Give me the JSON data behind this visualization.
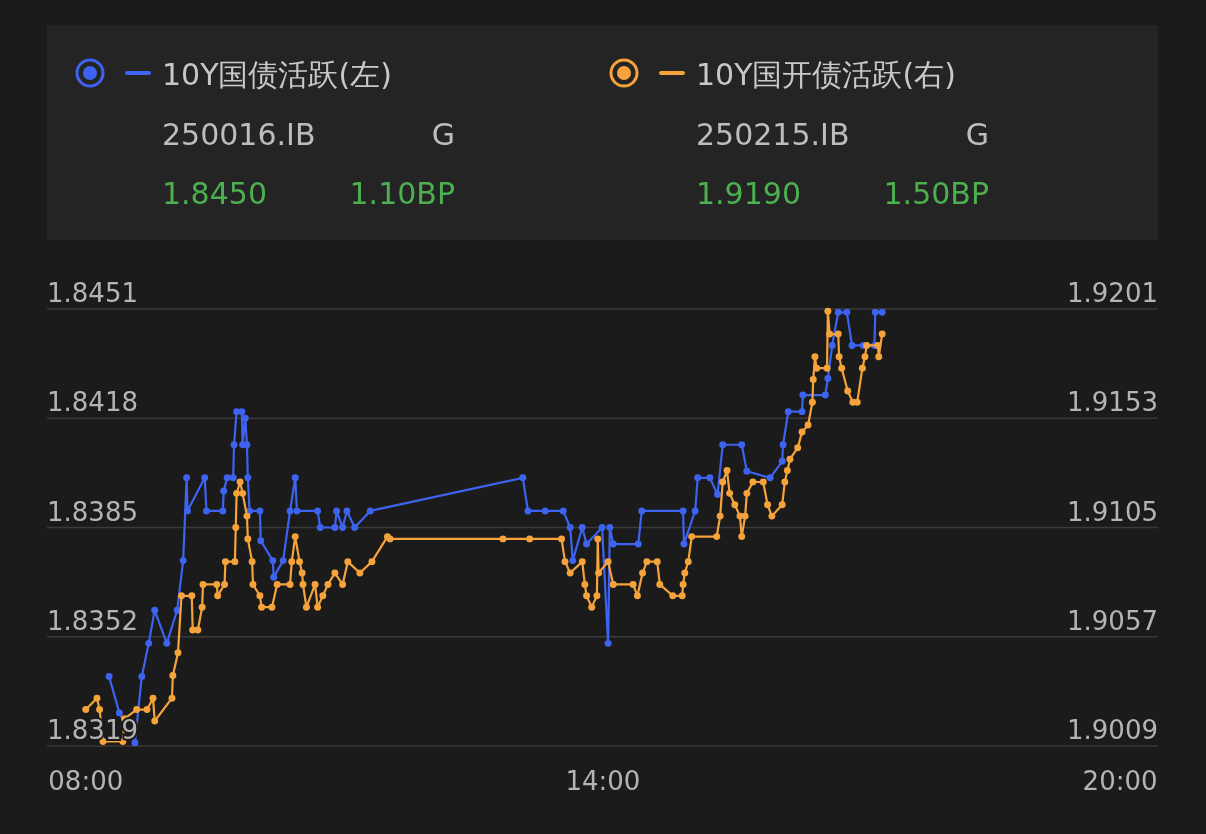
{
  "chart_data": {
    "type": "line",
    "series": [
      {
        "name": "10Y国债活跃(左)",
        "color": "#3d63f0",
        "x": [
          8.27,
          8.39,
          8.57,
          8.65,
          8.73,
          8.8,
          8.94,
          9.06,
          9.13,
          9.17,
          9.18,
          9.38,
          9.4,
          9.59,
          9.6,
          9.64,
          9.71,
          9.72,
          9.75,
          9.81,
          9.82,
          9.85,
          9.87,
          9.88,
          9.9,
          10.02,
          10.03,
          10.17,
          10.18,
          10.29,
          10.37,
          10.43,
          10.45,
          10.69,
          10.72,
          10.89,
          10.91,
          10.98,
          11.03,
          11.12,
          11.3,
          13.07,
          13.13,
          13.33,
          13.54,
          13.62,
          13.65,
          13.76,
          13.81,
          13.99,
          14.06,
          14.08,
          14.12,
          14.41,
          14.45,
          14.93,
          14.94,
          15.07,
          15.1,
          15.24,
          15.33,
          15.39,
          15.61,
          15.67,
          15.94,
          16.08,
          16.09,
          16.15,
          16.31,
          16.32,
          16.58,
          16.61,
          16.66,
          16.73,
          16.83,
          16.89,
          17.02,
          17.15,
          17.16,
          17.24
        ],
        "values": [
          1.834,
          1.8329,
          1.832,
          1.834,
          1.835,
          1.836,
          1.835,
          1.836,
          1.8375,
          1.84,
          1.839,
          1.84,
          1.839,
          1.839,
          1.8396,
          1.84,
          1.84,
          1.841,
          1.842,
          1.842,
          1.841,
          1.8418,
          1.841,
          1.84,
          1.839,
          1.839,
          1.8381,
          1.8375,
          1.837,
          1.8375,
          1.839,
          1.84,
          1.839,
          1.839,
          1.8385,
          1.8385,
          1.839,
          1.8385,
          1.839,
          1.8385,
          1.839,
          1.84,
          1.839,
          1.839,
          1.839,
          1.8385,
          1.8375,
          1.8385,
          1.838,
          1.8385,
          1.835,
          1.8385,
          1.838,
          1.838,
          1.839,
          1.839,
          1.838,
          1.839,
          1.84,
          1.84,
          1.8395,
          1.841,
          1.841,
          1.8402,
          1.84,
          1.8405,
          1.841,
          1.842,
          1.842,
          1.8425,
          1.8425,
          1.843,
          1.844,
          1.845,
          1.845,
          1.844,
          1.844,
          1.844,
          1.845,
          1.845
        ]
      },
      {
        "name": "10Y国开债活跃(右)",
        "color": "#f5a33a",
        "axis": "y2",
        "x": [
          8.0,
          8.13,
          8.16,
          8.2,
          8.43,
          8.45,
          8.59,
          8.71,
          8.78,
          8.8,
          9.0,
          9.01,
          9.07,
          9.11,
          9.23,
          9.24,
          9.3,
          9.35,
          9.36,
          9.52,
          9.53,
          9.61,
          9.62,
          9.73,
          9.74,
          9.75,
          9.79,
          9.82,
          9.87,
          9.88,
          9.93,
          9.94,
          10.02,
          10.04,
          10.16,
          10.22,
          10.37,
          10.39,
          10.43,
          10.48,
          10.51,
          10.52,
          10.56,
          10.66,
          10.69,
          10.75,
          10.81,
          10.89,
          10.98,
          11.04,
          11.18,
          11.32,
          11.5,
          11.53,
          12.84,
          13.15,
          13.52,
          13.56,
          13.62,
          13.76,
          13.79,
          13.81,
          13.87,
          13.93,
          13.94,
          13.95,
          14.06,
          14.12,
          14.35,
          14.4,
          14.46,
          14.51,
          14.63,
          14.66,
          14.81,
          14.92,
          14.93,
          14.95,
          14.99,
          15.03,
          15.32,
          15.36,
          15.39,
          15.44,
          15.47,
          15.53,
          15.59,
          15.61,
          15.65,
          15.67,
          15.74,
          15.86,
          15.91,
          15.96,
          16.08,
          16.11,
          16.14,
          16.17,
          16.26,
          16.31,
          16.38,
          16.43,
          16.44,
          16.46,
          16.48,
          16.6,
          16.61,
          16.63,
          16.73,
          16.74,
          16.77,
          16.84,
          16.9,
          16.95,
          17.01,
          17.04,
          17.06,
          17.19,
          17.2,
          17.24
        ],
        "values": [
          1.9025,
          1.903,
          1.9025,
          1.9011,
          1.9011,
          1.9021,
          1.9025,
          1.9025,
          1.903,
          1.902,
          1.903,
          1.904,
          1.905,
          1.9075,
          1.9075,
          1.906,
          1.906,
          1.907,
          1.908,
          1.908,
          1.9075,
          1.908,
          1.909,
          1.909,
          1.9105,
          1.912,
          1.9125,
          1.912,
          1.911,
          1.91,
          1.909,
          1.908,
          1.9075,
          1.907,
          1.907,
          1.908,
          1.908,
          1.909,
          1.9101,
          1.909,
          1.9085,
          1.908,
          1.907,
          1.908,
          1.907,
          1.9075,
          1.908,
          1.9085,
          1.908,
          1.909,
          1.9085,
          1.909,
          1.9101,
          1.91,
          1.91,
          1.91,
          1.91,
          1.909,
          1.9085,
          1.909,
          1.908,
          1.9075,
          1.907,
          1.9075,
          1.91,
          1.9085,
          1.909,
          1.908,
          1.908,
          1.9075,
          1.9085,
          1.909,
          1.909,
          1.908,
          1.9075,
          1.9075,
          1.908,
          1.9085,
          1.909,
          1.9101,
          1.9101,
          1.911,
          1.9125,
          1.913,
          1.912,
          1.9115,
          1.911,
          1.9101,
          1.911,
          1.912,
          1.9125,
          1.9125,
          1.9115,
          1.911,
          1.9115,
          1.9125,
          1.913,
          1.9135,
          1.914,
          1.9147,
          1.915,
          1.916,
          1.917,
          1.918,
          1.9175,
          1.9175,
          1.92,
          1.919,
          1.919,
          1.918,
          1.9175,
          1.9165,
          1.916,
          1.916,
          1.9175,
          1.918,
          1.9185,
          1.9185,
          1.918,
          1.919
        ]
      }
    ],
    "xlim": [
      7.55,
      20.44
    ],
    "xticks": [
      {
        "value": 8,
        "label": "08:00"
      },
      {
        "value": 14,
        "label": "14:00"
      },
      {
        "value": 20,
        "label": "20:00"
      }
    ],
    "ylim": [
      1.8319,
      1.8451
    ],
    "yticks": [
      1.8319,
      1.8352,
      1.8385,
      1.8418,
      1.8451
    ],
    "y2lim": [
      1.9009,
      1.9201
    ],
    "y2ticks": [
      1.9009,
      1.9057,
      1.9105,
      1.9153,
      1.9201
    ],
    "grid": "y",
    "legend": "top",
    "marker": "circle",
    "line_style": "solid",
    "annotations": [
      "250016.IB",
      "G",
      "1.8450",
      "1.10BP",
      "250215.IB",
      "G",
      "1.9190",
      "1.50BP"
    ]
  }
}
